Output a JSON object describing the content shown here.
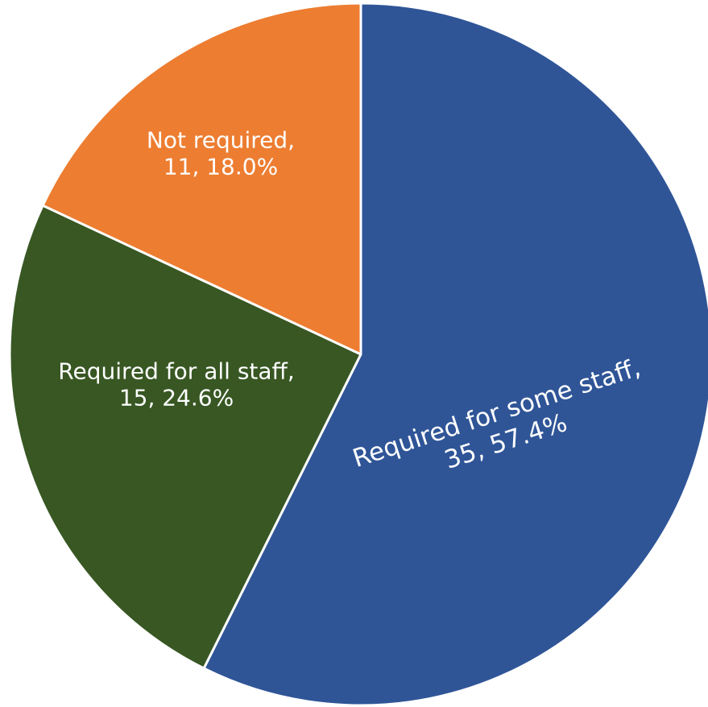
{
  "chart_data": {
    "type": "pie",
    "start_angle_deg": 0,
    "direction": "clockwise",
    "slices": [
      {
        "name": "Required for some staff",
        "value": 35,
        "percent": "57.4%",
        "label_line1": "Required for some staff,",
        "label_line2": "35, 57.4%",
        "color": "#2F5597"
      },
      {
        "name": "Required for all staff",
        "value": 15,
        "percent": "24.6%",
        "label_line1": "Required for all staff,",
        "label_line2": "15, 24.6%",
        "color": "#385723"
      },
      {
        "name": "Not required",
        "value": 11,
        "percent": "18.0%",
        "label_line1": "Not required,",
        "label_line2": "11, 18.0%",
        "color": "#ED7D31"
      }
    ]
  }
}
